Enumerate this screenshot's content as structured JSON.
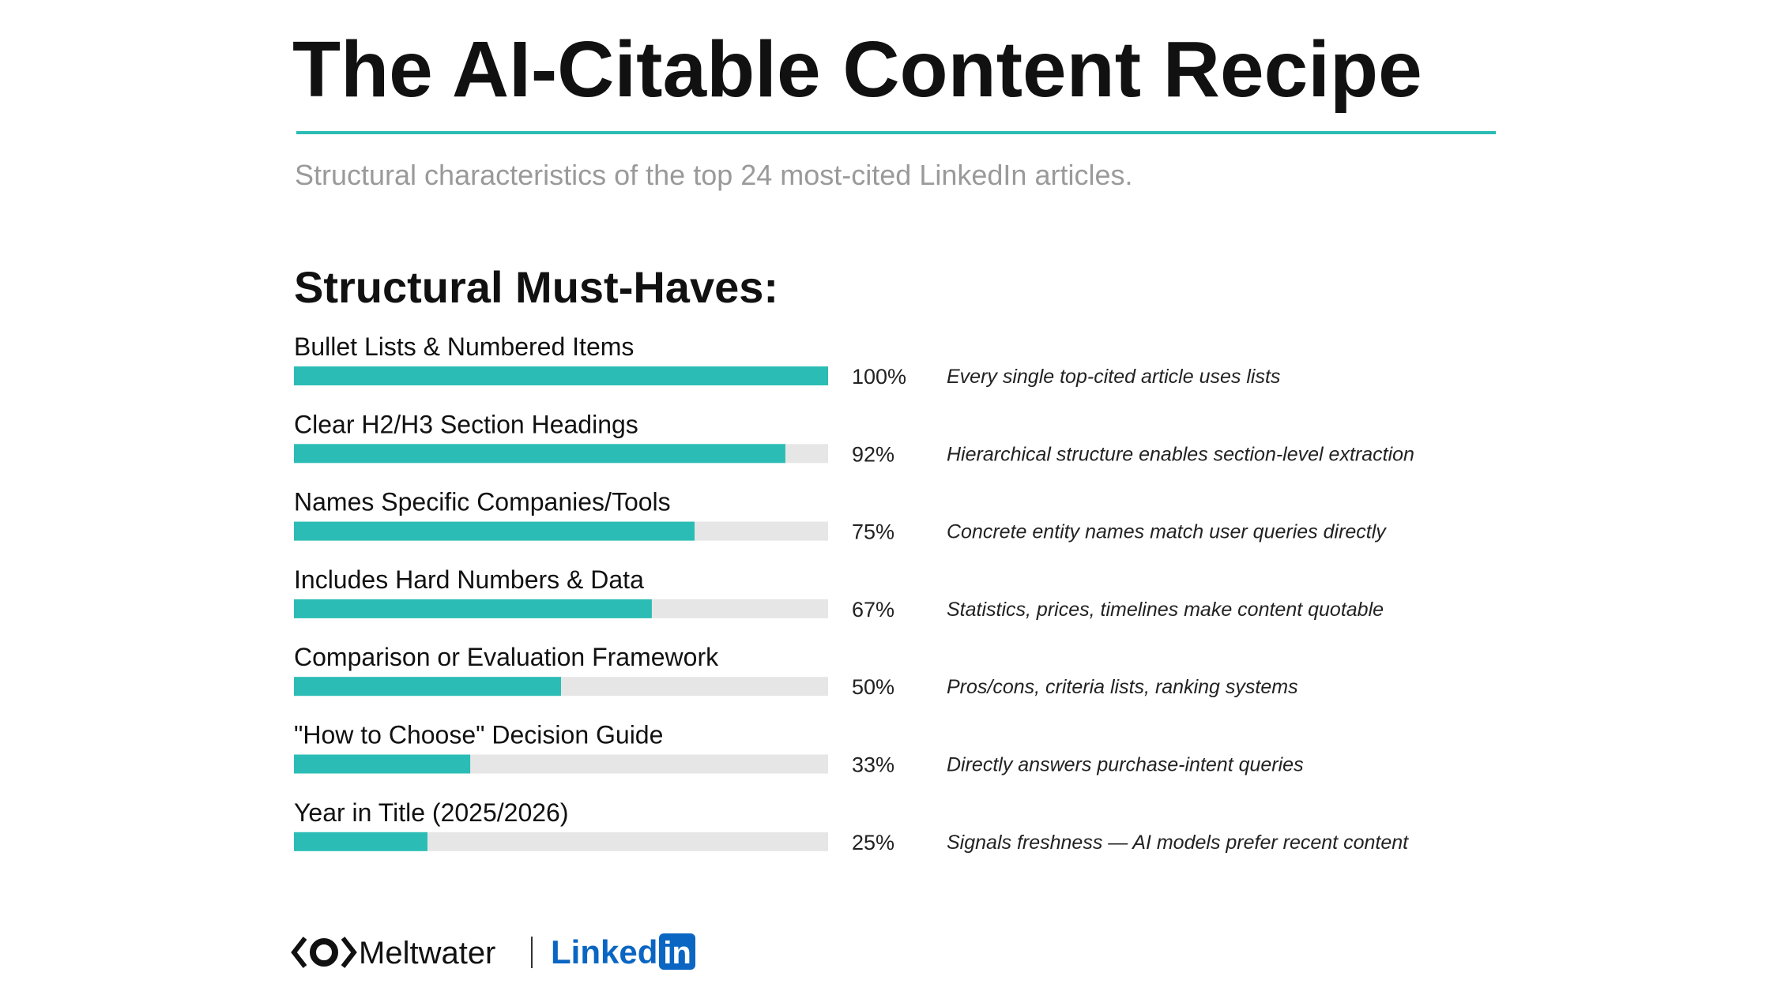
{
  "chart_data": {
    "type": "bar",
    "orientation": "horizontal",
    "title": "The AI-Citable Content Recipe",
    "subtitle": "Structural characteristics of the top 24 most-cited LinkedIn articles.",
    "section_title": "Structural Must-Haves:",
    "categories": [
      "Bullet Lists & Numbered Items",
      "Clear H2/H3 Section Headings",
      "Names Specific Companies/Tools",
      "Includes Hard Numbers & Data",
      "Comparison or Evaluation Framework",
      "\"How to Choose\" Decision Guide",
      "Year in Title (2025/2026)"
    ],
    "values": [
      100,
      92,
      75,
      67,
      50,
      33,
      25
    ],
    "value_labels": [
      "100%",
      "92%",
      "75%",
      "67%",
      "50%",
      "33%",
      "25%"
    ],
    "annotations": [
      "Every single top-cited article uses lists",
      "Hierarchical structure enables section-level extraction",
      "Concrete entity names match user queries directly",
      "Statistics, prices, timelines make content quotable",
      "Pros/cons, criteria lists, ranking systems",
      "Directly answers purchase-intent queries",
      "Signals freshness — AI models prefer recent content"
    ],
    "color": "#2bbdb5",
    "track_color": "#e6e6e6",
    "xlim": [
      0,
      100
    ],
    "brands": [
      "Meltwater",
      "Linked",
      "in"
    ]
  }
}
